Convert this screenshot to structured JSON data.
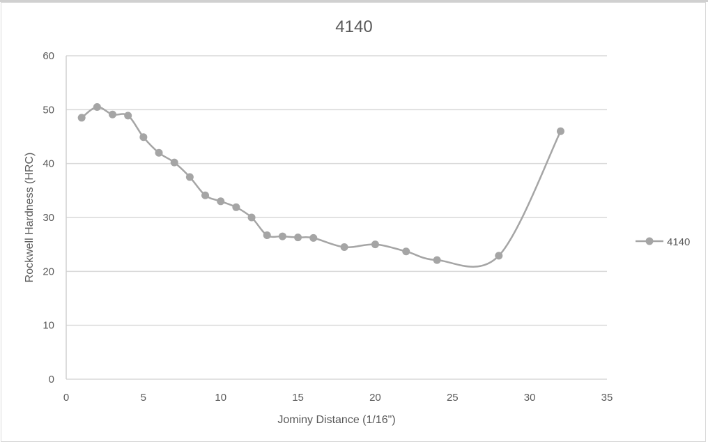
{
  "chart_data": {
    "type": "line",
    "title": "4140",
    "xlabel": "Jominy Distance (1/16\")",
    "ylabel": "Rockwell Hardness (HRC)",
    "xlim": [
      0,
      35
    ],
    "ylim": [
      0,
      60
    ],
    "x_ticks": [
      0,
      5,
      10,
      15,
      20,
      25,
      30,
      35
    ],
    "y_ticks": [
      0,
      10,
      20,
      30,
      40,
      50,
      60
    ],
    "grid": {
      "horizontal": true,
      "vertical": false
    },
    "legend_position": "right",
    "smoothed": true,
    "series": [
      {
        "name": "4140",
        "color": "#a5a5a5",
        "x": [
          1,
          2,
          3,
          4,
          5,
          6,
          7,
          8,
          9,
          10,
          11,
          12,
          13,
          14,
          15,
          16,
          18,
          20,
          22,
          24,
          28,
          32
        ],
        "values": [
          48.5,
          50.5,
          49.1,
          48.9,
          44.9,
          42.0,
          40.2,
          37.5,
          34.1,
          33.0,
          31.9,
          30.0,
          26.7,
          26.5,
          26.3,
          26.2,
          24.5,
          25.0,
          23.7,
          22.1,
          22.9,
          46.0
        ]
      }
    ]
  },
  "legend": {
    "label": "4140"
  }
}
